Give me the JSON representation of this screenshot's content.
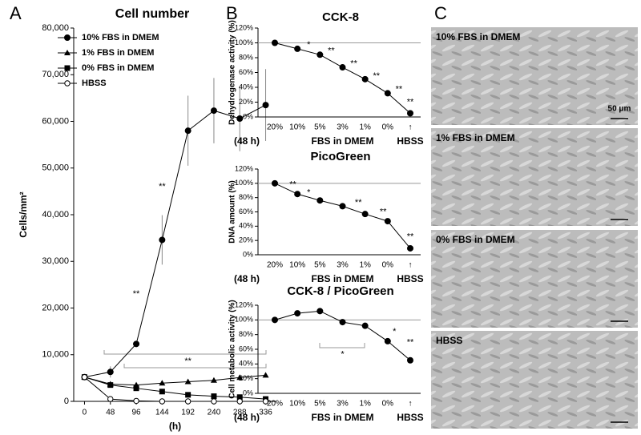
{
  "panel_labels": [
    "A",
    "B",
    "C"
  ],
  "chart_data": [
    {
      "type": "line",
      "title": "Cell number",
      "x_label": "(h)",
      "y_label": "Cells/mm²",
      "x": [
        0,
        48,
        96,
        144,
        192,
        240,
        288,
        336
      ],
      "xlim": [
        -20,
        356
      ],
      "xticks": [
        0,
        48,
        96,
        144,
        192,
        240,
        288,
        336
      ],
      "ylim": [
        0,
        80000
      ],
      "yticks": [
        0,
        {
          "value": 10000,
          "label": "10,000"
        },
        {
          "value": 20000,
          "label": "20,000"
        },
        {
          "value": 30000,
          "label": "30,000"
        },
        {
          "value": 40000,
          "label": "40,000"
        },
        {
          "value": 50000,
          "label": "50,000"
        },
        {
          "value": 60000,
          "label": "60,000"
        },
        {
          "value": 70000,
          "label": "70,000"
        },
        {
          "value": 80000,
          "label": "80,000"
        }
      ],
      "series": [
        {
          "name": "10% FBS in DMEM",
          "marker": "circle",
          "color": "#000000",
          "values": [
            5200,
            6300,
            12300,
            34600,
            58000,
            62300,
            60600,
            63500
          ],
          "errors": [
            0,
            1200,
            0,
            5300,
            7500,
            7000,
            7000,
            7700
          ]
        },
        {
          "name": "1% FBS in DMEM",
          "marker": "triangle",
          "color": "#000000",
          "values": [
            5200,
            3700,
            3500,
            3900,
            4200,
            4500,
            5100,
            5600
          ]
        },
        {
          "name": "0% FBS in DMEM",
          "marker": "square",
          "color": "#000000",
          "values": [
            5200,
            3500,
            2800,
            2100,
            1400,
            1100,
            900,
            500
          ]
        },
        {
          "name": "HBSS",
          "marker": "open-circle",
          "color": "#000000",
          "values": [
            5200,
            500,
            100,
            0,
            0,
            0,
            0,
            0
          ]
        }
      ],
      "annotations": [
        {
          "text": "**",
          "x": 96,
          "y": 23000
        },
        {
          "text": "**",
          "x": 144,
          "y": 46000
        },
        {
          "text": "**",
          "x": 192,
          "y": 8600
        }
      ]
    },
    {
      "type": "line",
      "title": "CCK-8",
      "y_label": "Dehydrogenase activity (%)",
      "categories": [
        "20%",
        "10%",
        "5%",
        "3%",
        "1%",
        "0%",
        "↑"
      ],
      "group_labels": [
        "(48 h)",
        "FBS in DMEM",
        "HBSS"
      ],
      "ylim": [
        0,
        120
      ],
      "yticks": [
        {
          "value": 0,
          "label": "0%"
        },
        {
          "value": 20,
          "label": "20%"
        },
        {
          "value": 40,
          "label": "40%"
        },
        {
          "value": 60,
          "label": "60%"
        },
        {
          "value": 80,
          "label": "80%"
        },
        {
          "value": 100,
          "label": "100%"
        },
        {
          "value": 120,
          "label": "120%"
        }
      ],
      "reference_line": 100,
      "series": [
        {
          "name": "CCK-8",
          "color": "#000000",
          "values": [
            100,
            92,
            84,
            67,
            51,
            32,
            5
          ]
        }
      ],
      "annotations": [
        {
          "text": "*",
          "x": 1.5,
          "y": 97
        },
        {
          "text": "**",
          "x": 2.5,
          "y": 89
        },
        {
          "text": "**",
          "x": 3.5,
          "y": 72
        },
        {
          "text": "**",
          "x": 4.5,
          "y": 55
        },
        {
          "text": "**",
          "x": 5.5,
          "y": 37
        },
        {
          "text": "**",
          "x": 6,
          "y": 20
        }
      ]
    },
    {
      "type": "line",
      "title": "PicoGreen",
      "y_label": "DNA amount (%)",
      "categories": [
        "20%",
        "10%",
        "5%",
        "3%",
        "1%",
        "0%",
        "↑"
      ],
      "group_labels": [
        "(48 h)",
        "FBS in DMEM",
        "HBSS"
      ],
      "ylim": [
        0,
        120
      ],
      "yticks": [
        {
          "value": 0,
          "label": "0%"
        },
        {
          "value": 20,
          "label": "20%"
        },
        {
          "value": 40,
          "label": "40%"
        },
        {
          "value": 60,
          "label": "60%"
        },
        {
          "value": 80,
          "label": "80%"
        },
        {
          "value": 100,
          "label": "100%"
        },
        {
          "value": 120,
          "label": "120%"
        }
      ],
      "reference_line": 100,
      "series": [
        {
          "name": "PicoGreen",
          "color": "#000000",
          "values": [
            100,
            85,
            76,
            68,
            57,
            47,
            9
          ]
        }
      ],
      "annotations": [
        {
          "text": "**",
          "x": 0.8,
          "y": 98
        },
        {
          "text": "*",
          "x": 1.5,
          "y": 87
        },
        {
          "text": "**",
          "x": 3.7,
          "y": 73
        },
        {
          "text": "**",
          "x": 4.8,
          "y": 60
        },
        {
          "text": "**",
          "x": 6,
          "y": 25
        }
      ]
    },
    {
      "type": "line",
      "title": "CCK-8 / PicoGreen",
      "y_label": "Cell metabolic activity (%)",
      "categories": [
        "20%",
        "10%",
        "5%",
        "3%",
        "1%",
        "0%",
        "↑"
      ],
      "group_labels": [
        "(48 h)",
        "FBS in DMEM",
        "HBSS"
      ],
      "ylim": [
        0,
        120
      ],
      "yticks": [
        {
          "value": 0,
          "label": "0%"
        },
        {
          "value": 20,
          "label": "20%"
        },
        {
          "value": 40,
          "label": "40%"
        },
        {
          "value": 60,
          "label": "60%"
        },
        {
          "value": 80,
          "label": "80%"
        },
        {
          "value": 100,
          "label": "100%"
        },
        {
          "value": 120,
          "label": "120%"
        }
      ],
      "reference_line": 100,
      "series": [
        {
          "name": "CCK-8 / PicoGreen",
          "color": "#000000",
          "values": [
            100,
            109,
            112,
            97,
            92,
            71,
            45
          ]
        }
      ],
      "annotations": [
        {
          "text": "*",
          "x": 5.3,
          "y": 84
        },
        {
          "text": "**",
          "x": 6,
          "y": 69
        },
        {
          "text": "*",
          "x": 3,
          "y": 53
        }
      ]
    }
  ],
  "images": [
    {
      "label": "10% FBS in DMEM"
    },
    {
      "label": "1% FBS in DMEM"
    },
    {
      "label": "0% FBS in DMEM"
    },
    {
      "label": "HBSS"
    }
  ],
  "scale_bar": "50 μm"
}
